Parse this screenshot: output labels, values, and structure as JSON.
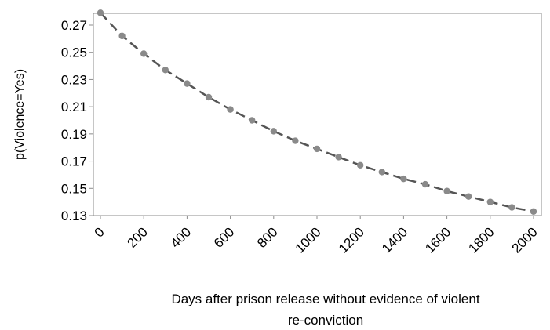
{
  "chart_data": {
    "type": "line",
    "title": "",
    "xlabel_lines": [
      "Days after prison release without  evidence of violent",
      "re-conviction"
    ],
    "ylabel": "p(Violence=Yes)",
    "xlim": [
      0,
      2000
    ],
    "ylim": [
      0.13,
      0.28
    ],
    "x_ticks": [
      "0",
      "200",
      "400",
      "600",
      "800",
      "1000",
      "1200",
      "1400",
      "1600",
      "1800",
      "2000"
    ],
    "y_ticks": [
      "0.27",
      "0.25",
      "0.23",
      "0.21",
      "0.19",
      "0.17",
      "0.15",
      "0.13"
    ],
    "grid": false,
    "legend": "none",
    "series": [
      {
        "color": "#555555",
        "line_style": "dashed",
        "marker": "circle",
        "x": [
          0,
          100,
          200,
          300,
          400,
          500,
          600,
          700,
          800,
          900,
          1000,
          1100,
          1200,
          1300,
          1400,
          1500,
          1600,
          1700,
          1800,
          1900,
          2000
        ],
        "y": [
          0.279,
          0.262,
          0.249,
          0.237,
          0.227,
          0.217,
          0.208,
          0.2,
          0.192,
          0.185,
          0.179,
          0.173,
          0.167,
          0.162,
          0.157,
          0.153,
          0.148,
          0.144,
          0.14,
          0.136,
          0.133
        ]
      }
    ]
  }
}
